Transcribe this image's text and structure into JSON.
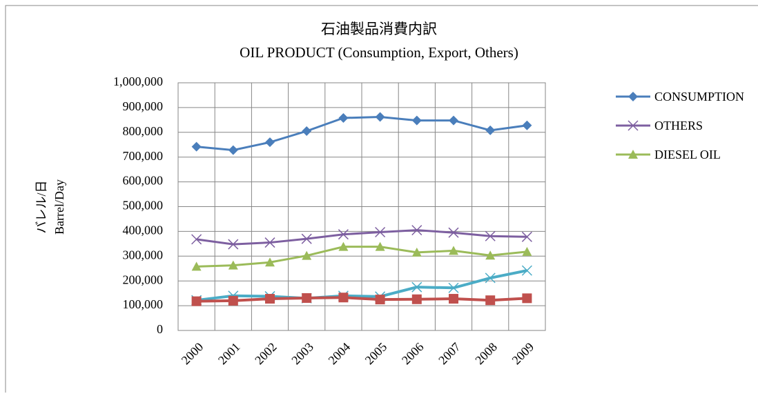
{
  "chart_data": {
    "type": "line",
    "title": "石油製品消費内訳",
    "subtitle": "OIL PRODUCT (Consumption, Export, Others)",
    "y_label": [
      "バレル/日",
      "Barrel/Day"
    ],
    "categories": [
      "2000",
      "2001",
      "2002",
      "2003",
      "2004",
      "2005",
      "2006",
      "2007",
      "2008",
      "2009"
    ],
    "series": [
      {
        "name": "CONSUMPTION",
        "color": "#4a7ebb",
        "marker": "diamond",
        "values": [
          742000,
          728000,
          760000,
          805000,
          858000,
          862000,
          848000,
          848000,
          808000,
          828000
        ]
      },
      {
        "name": "OTHERS",
        "color": "#7d5fa0",
        "marker": "x",
        "values": [
          368000,
          348000,
          355000,
          370000,
          388000,
          397000,
          405000,
          395000,
          381000,
          378000
        ]
      },
      {
        "name": "DIESEL OIL",
        "color": "#9bbb59",
        "marker": "triangle",
        "values": [
          258000,
          263000,
          275000,
          302000,
          338000,
          338000,
          315000,
          322000,
          303000,
          318000
        ]
      },
      {
        "color": "#4bacc6",
        "marker": "x",
        "values": [
          122000,
          140000,
          138000,
          130000,
          140000,
          137000,
          175000,
          172000,
          212000,
          242000
        ]
      },
      {
        "color": "#c0504d",
        "marker": "square",
        "values": [
          118000,
          120000,
          128000,
          131000,
          133000,
          125000,
          126000,
          128000,
          122000,
          130000
        ]
      }
    ],
    "ylim": [
      0,
      1000000
    ],
    "yticks": [
      0,
      {
        "value": 100000,
        "label": "100,000"
      },
      {
        "value": 200000,
        "label": "200,000"
      },
      {
        "value": 300000,
        "label": "300,000"
      },
      {
        "value": 400000,
        "label": "400,000"
      },
      {
        "value": 500000,
        "label": "500,000"
      },
      {
        "value": 600000,
        "label": "600,000"
      },
      {
        "value": 700000,
        "label": "700,000"
      },
      {
        "value": 800000,
        "label": "800,000"
      },
      {
        "value": 900000,
        "label": "900,000"
      },
      {
        "value": 1000000,
        "label": "1,000,000"
      }
    ],
    "grid": true,
    "legend": "right"
  }
}
